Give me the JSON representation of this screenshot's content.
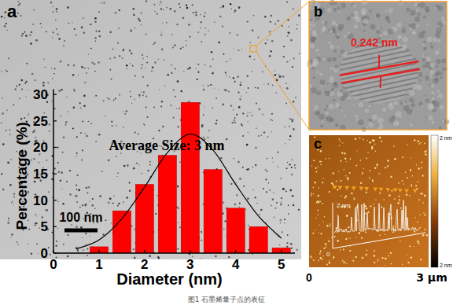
{
  "figure": {
    "panel_labels": [
      "a",
      "b",
      "c"
    ],
    "scale_bar": "100 nm",
    "lattice_spacing": "0.242 nm",
    "afm": {
      "colorbar_labels": [
        "2 nm",
        "2 nm"
      ],
      "profile_labels": [
        "2 nm",
        "0"
      ],
      "axis_labels": [
        "0",
        "3 μm"
      ]
    },
    "caption": "图1 石墨烯量子点的表征"
  },
  "chart_data": {
    "type": "histogram",
    "x_label": "Diameter (nm)",
    "y_label": "Percentage (%)",
    "annotation": "Average Size: 3 nm",
    "bins": [
      0.75,
      1.25,
      1.75,
      2.25,
      2.75,
      3.25,
      3.75,
      4.25,
      4.75,
      5.25
    ],
    "values": [
      1.2,
      8,
      13,
      18.5,
      28.5,
      15.8,
      8.5,
      5,
      1
    ],
    "color": "#ff0000",
    "fit": {
      "type": "line",
      "color": "#000000",
      "x": [
        0.5,
        1,
        1.5,
        2,
        2.5,
        3,
        3.5,
        4,
        4.5,
        5
      ],
      "values": [
        0.8,
        2.5,
        6.5,
        12.5,
        19,
        22.5,
        19.5,
        13,
        7,
        2.8
      ]
    },
    "xlim": [
      0,
      5.3
    ],
    "ylim": [
      0,
      31
    ],
    "xticks": [
      0,
      1,
      2,
      3,
      4,
      5
    ],
    "yticks": [
      0,
      5,
      10,
      15,
      20,
      25,
      30
    ]
  }
}
